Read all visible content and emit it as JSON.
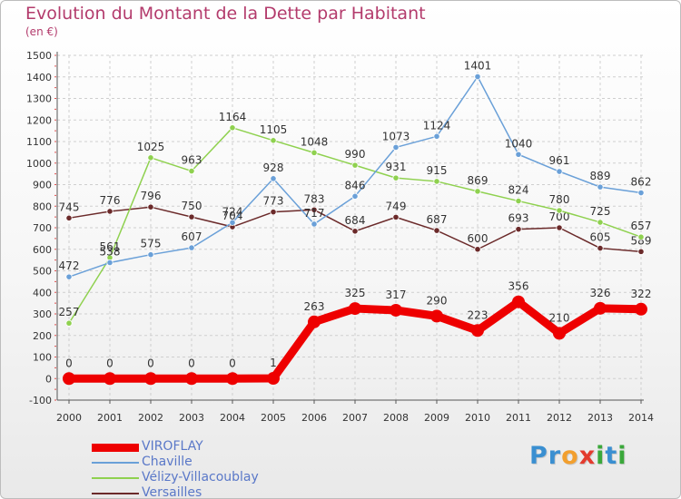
{
  "title": "Evolution du Montant de la Dette par Habitant",
  "subtitle": "(en €)",
  "logo": "Proxiti",
  "chart_data": {
    "type": "line",
    "x": [
      "2000",
      "2001",
      "2002",
      "2003",
      "2004",
      "2005",
      "2006",
      "2007",
      "2008",
      "2009",
      "2010",
      "2011",
      "2012",
      "2013",
      "2014"
    ],
    "ylim": [
      -100,
      1500
    ],
    "yticks": [
      -100,
      0,
      100,
      200,
      300,
      400,
      500,
      600,
      700,
      800,
      900,
      1000,
      1100,
      1200,
      1300,
      1400,
      1500
    ],
    "grid": true,
    "legend_position": "bottom-left",
    "series": [
      {
        "name": "Versailles",
        "color": "#6b2a2a",
        "width": 1.5,
        "values": [
          745,
          776,
          796,
          750,
          704,
          773,
          783,
          684,
          749,
          687,
          600,
          693,
          700,
          605,
          589
        ],
        "labels": [
          "745",
          "776",
          "796",
          "750",
          "704",
          "773",
          "783",
          "684",
          "749",
          "687",
          "600",
          "693",
          "700",
          "605",
          "589"
        ]
      },
      {
        "name": "Vélizy-Villacoublay",
        "color": "#8fd14f",
        "width": 1.5,
        "values": [
          257,
          561,
          1025,
          963,
          1164,
          1105,
          1048,
          990,
          931,
          915,
          869,
          824,
          780,
          725,
          657
        ],
        "labels": [
          "257",
          "561",
          "1025",
          "963",
          "1164",
          "1105",
          "1048",
          "990",
          "931",
          "915",
          "869",
          "824",
          "780",
          "725",
          "657"
        ]
      },
      {
        "name": "Chaville",
        "color": "#6aa0d8",
        "width": 1.5,
        "values": [
          472,
          538,
          575,
          607,
          724,
          928,
          717,
          846,
          1073,
          1124,
          1401,
          1040,
          961,
          889,
          862
        ],
        "labels": [
          "472",
          "538",
          "575",
          "607",
          "724",
          "928",
          "717",
          "846",
          "1073",
          "1124",
          "1401",
          "1040",
          "961",
          "889",
          "862"
        ]
      },
      {
        "name": "VIROFLAY",
        "color": "#ee0000",
        "width": 9,
        "values": [
          0,
          0,
          0,
          0,
          0,
          1,
          263,
          325,
          317,
          290,
          223,
          356,
          210,
          326,
          322
        ],
        "labels": [
          "0",
          "0",
          "0",
          "0",
          "0",
          "1",
          "263",
          "325",
          "317",
          "290",
          "223",
          "356",
          "210",
          "326",
          "322"
        ]
      }
    ]
  },
  "legend_order": [
    "VIROFLAY",
    "Chaville",
    "Vélizy-Villacoublay",
    "Versailles"
  ]
}
